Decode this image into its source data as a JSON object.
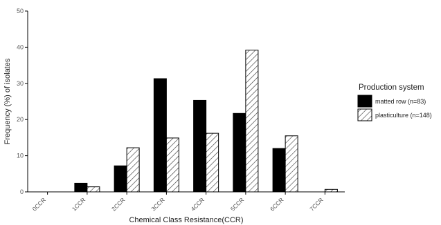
{
  "chart_data": {
    "type": "bar",
    "title": "",
    "xlabel": "Chemical Class Resistance(CCR)",
    "ylabel": "Frequency (%) of isolates",
    "categories": [
      "0CCR",
      "1CCR",
      "2CCR",
      "3CCR",
      "4CCR",
      "5CCR",
      "6CCR",
      "7CCR"
    ],
    "ylim": [
      0,
      50
    ],
    "yticks": [
      0,
      10,
      20,
      30,
      40,
      50
    ],
    "grid": false,
    "legend_title": "Production system",
    "legend_position": "right",
    "series": [
      {
        "name": "matted row (n=83)",
        "fill": "solid",
        "color": "#000000",
        "values": [
          0,
          2.4,
          7.2,
          31.3,
          25.3,
          21.7,
          12.0,
          0
        ]
      },
      {
        "name": "plasticulture (n=148)",
        "fill": "hatched",
        "color": "#ffffff",
        "values": [
          0,
          1.4,
          12.2,
          14.9,
          16.2,
          39.2,
          15.5,
          0.7
        ]
      }
    ]
  }
}
